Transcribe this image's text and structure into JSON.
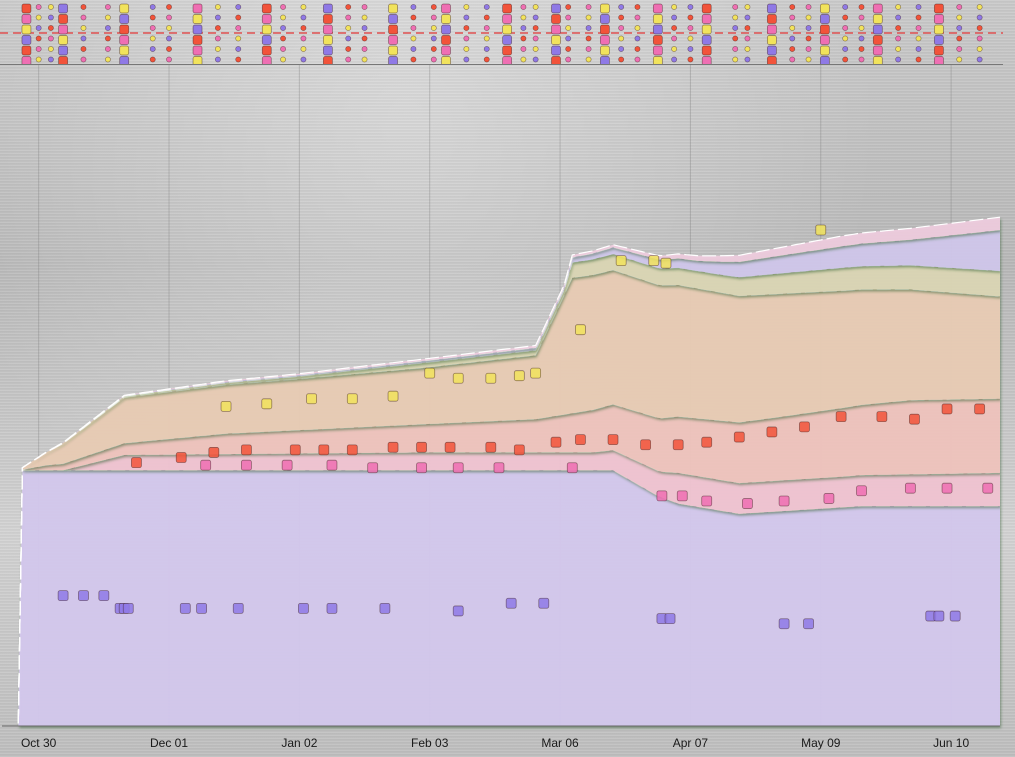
{
  "chart_data": {
    "type": "area",
    "title": "",
    "xlabel": "",
    "ylabel": "",
    "x_tick_labels": [
      "Oct 30",
      "Dec 01",
      "Jan 02",
      "Feb 03",
      "Mar 06",
      "Apr 07",
      "May 09",
      "Jun 10"
    ],
    "x_domain": [
      "2012-10-21",
      "2013-06-23"
    ],
    "stack_order": [
      "purple",
      "pink",
      "salmon",
      "orange",
      "olive",
      "lavender",
      "pink-top"
    ],
    "colors": {
      "purple": "#d6caf0",
      "pink": "#f3c6d4",
      "salmon": "#f2c6bf",
      "orange": "#ecceb6",
      "olive": "#ddd8b6",
      "lavender": "#d3c9ee",
      "pink-top": "#f0cde0",
      "marker_purple": "#8f79e6",
      "marker_pink": "#ef6fb3",
      "marker_red": "#f2533a",
      "marker_yellow": "#f1e35c",
      "guide_line": "#e05050"
    },
    "series": [
      {
        "name": "purple",
        "x": [
          "2012-10-25",
          "2012-10-26",
          "2013-03-20",
          "2013-03-31",
          "2013-04-05",
          "2013-04-20",
          "2013-05-20",
          "2013-06-23"
        ],
        "values": [
          1,
          100,
          100,
          90,
          87,
          83,
          86,
          86
        ]
      },
      {
        "name": "pink",
        "x": [
          "2012-10-25",
          "2012-11-05",
          "2012-11-20",
          "2013-02-01",
          "2013-03-15",
          "2013-04-01",
          "2013-04-05",
          "2013-05-15",
          "2013-06-23"
        ],
        "values": [
          0,
          0,
          6,
          7,
          7,
          10,
          12,
          12,
          13
        ]
      },
      {
        "name": "salmon",
        "x": [
          "2012-10-25",
          "2012-11-01",
          "2012-12-15",
          "2013-02-01",
          "2013-03-01",
          "2013-04-05",
          "2013-05-01",
          "2013-06-01",
          "2013-06-23"
        ],
        "values": [
          0,
          2,
          8,
          11,
          13,
          22,
          25,
          29,
          29
        ]
      },
      {
        "name": "orange",
        "x": [
          "2012-10-25",
          "2012-11-05",
          "2012-11-20",
          "2013-01-01",
          "2013-02-01",
          "2013-03-01",
          "2013-03-10",
          "2013-04-01",
          "2013-05-01",
          "2013-06-23"
        ],
        "values": [
          0,
          8,
          18,
          20,
          22,
          25,
          53,
          52,
          48,
          40
        ]
      },
      {
        "name": "olive",
        "x": [
          "2012-10-25",
          "2013-01-01",
          "2013-02-01",
          "2013-03-08",
          "2013-03-10",
          "2013-04-15",
          "2013-05-15",
          "2013-06-23"
        ],
        "values": [
          0,
          1,
          2,
          2,
          6,
          7,
          9,
          10
        ]
      },
      {
        "name": "lavender",
        "x": [
          "2012-10-25",
          "2013-03-08",
          "2013-03-10",
          "2013-04-10",
          "2013-04-20",
          "2013-06-01",
          "2013-06-23"
        ],
        "values": [
          0,
          1,
          2,
          4,
          6,
          10,
          16
        ]
      },
      {
        "name": "pink-top",
        "x": [
          "2012-10-25",
          "2013-03-20",
          "2013-04-10",
          "2013-05-15",
          "2013-06-23"
        ],
        "values": [
          0,
          1,
          2,
          4,
          5
        ]
      }
    ],
    "markers": [
      {
        "color": "purple",
        "x": [
          "2012-11-05",
          "2012-11-10",
          "2012-11-15",
          "2012-11-19",
          "2012-11-20",
          "2012-11-21",
          "2012-12-05",
          "2012-12-09",
          "2012-12-18",
          "2013-01-03",
          "2013-01-10",
          "2013-01-23",
          "2013-02-10",
          "2013-02-23",
          "2013-03-03",
          "2013-04-01",
          "2013-04-03",
          "2013-05-01",
          "2013-05-07",
          "2013-06-06",
          "2013-06-08",
          "2013-06-12"
        ],
        "y": [
          51,
          51,
          51,
          46,
          46,
          46,
          46,
          46,
          46,
          46,
          46,
          46,
          45,
          48,
          48,
          42,
          42,
          40,
          40,
          43,
          43,
          43
        ]
      },
      {
        "color": "pink",
        "x": [
          "2012-12-10",
          "2012-12-20",
          "2012-12-30",
          "2013-01-10",
          "2013-01-20",
          "2013-02-01",
          "2013-02-10",
          "2013-02-20",
          "2013-03-10",
          "2013-04-01",
          "2013-04-06",
          "2013-04-12",
          "2013-04-22",
          "2013-05-01",
          "2013-05-12",
          "2013-05-20",
          "2013-06-01",
          "2013-06-10",
          "2013-06-20"
        ],
        "y": [
          102,
          102,
          102,
          102,
          101,
          101,
          101,
          101,
          101,
          90,
          90,
          88,
          87,
          88,
          89,
          92,
          93,
          93,
          93
        ]
      },
      {
        "color": "red",
        "x": [
          "2012-11-23",
          "2012-12-04",
          "2012-12-12",
          "2012-12-20",
          "2013-01-01",
          "2013-01-08",
          "2013-01-15",
          "2013-01-25",
          "2013-02-01",
          "2013-02-08",
          "2013-02-18",
          "2013-02-25",
          "2013-03-06",
          "2013-03-12",
          "2013-03-20",
          "2013-03-28",
          "2013-04-05",
          "2013-04-12",
          "2013-04-20",
          "2013-04-28",
          "2013-05-06",
          "2013-05-15",
          "2013-05-25",
          "2013-06-02",
          "2013-06-10",
          "2013-06-18"
        ],
        "y": [
          103,
          105,
          107,
          108,
          108,
          108,
          108,
          109,
          109,
          109,
          109,
          108,
          111,
          112,
          112,
          110,
          110,
          111,
          113,
          115,
          117,
          121,
          121,
          120,
          124,
          124
        ]
      },
      {
        "color": "yellow",
        "x": [
          "2012-12-15",
          "2012-12-25",
          "2013-01-05",
          "2013-01-15",
          "2013-01-25",
          "2013-02-03",
          "2013-02-10",
          "2013-02-18",
          "2013-02-25",
          "2013-03-01",
          "2013-03-12",
          "2013-03-22",
          "2013-03-30",
          "2013-04-02",
          "2013-05-10"
        ],
        "y": [
          125,
          126,
          128,
          128,
          129,
          138,
          136,
          136,
          137,
          138,
          155,
          182,
          182,
          181,
          194
        ]
      }
    ],
    "overview_marker_dates": [
      "2012-10-27",
      "2012-10-30",
      "2012-11-02",
      "2012-11-05",
      "2012-11-10",
      "2012-11-16",
      "2012-11-20",
      "2012-11-27",
      "2012-12-01",
      "2012-12-08",
      "2012-12-13",
      "2012-12-18",
      "2012-12-25",
      "2012-12-29",
      "2013-01-03",
      "2013-01-09",
      "2013-01-14",
      "2013-01-18",
      "2013-01-25",
      "2013-01-30",
      "2013-02-04",
      "2013-02-07",
      "2013-02-12",
      "2013-02-17",
      "2013-02-22",
      "2013-02-26",
      "2013-03-01",
      "2013-03-06",
      "2013-03-09",
      "2013-03-14",
      "2013-03-18",
      "2013-03-22",
      "2013-03-26",
      "2013-03-31",
      "2013-04-04",
      "2013-04-08",
      "2013-04-12",
      "2013-04-19",
      "2013-04-22",
      "2013-04-28",
      "2013-05-03",
      "2013-05-07",
      "2013-05-11",
      "2013-05-16",
      "2013-05-20",
      "2013-05-24",
      "2013-05-29",
      "2013-06-03",
      "2013-06-08",
      "2013-06-13",
      "2013-06-18"
    ],
    "ylim": [
      0,
      255
    ],
    "grid": true,
    "legend": "none"
  }
}
